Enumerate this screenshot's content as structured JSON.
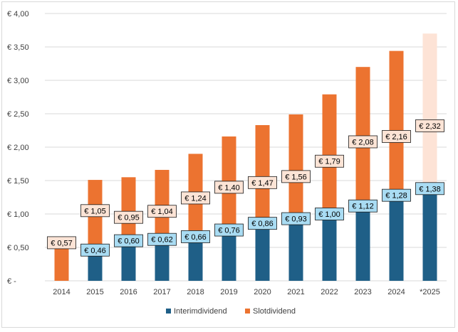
{
  "chart_data": {
    "type": "bar",
    "stacked": true,
    "categories": [
      "2014",
      "2015",
      "2016",
      "2017",
      "2018",
      "2019",
      "2020",
      "2021",
      "2022",
      "2023",
      "2024",
      "*2025"
    ],
    "series": [
      {
        "name": "Interimdividend",
        "color": "#1f5f87",
        "values": [
          0,
          0.46,
          0.6,
          0.62,
          0.66,
          0.76,
          0.86,
          0.93,
          1.0,
          1.12,
          1.28,
          1.38
        ],
        "labels": [
          null,
          "€ 0,46",
          "€ 0,60",
          "€ 0,62",
          "€ 0,66",
          "€ 0,76",
          "€ 0,86",
          "€ 0,93",
          "€ 1,00",
          "€ 1,12",
          "€ 1,28",
          "€ 1,38"
        ]
      },
      {
        "name": "Slotdividend",
        "color": "#ec7330",
        "values": [
          0.57,
          1.05,
          0.95,
          1.04,
          1.24,
          1.4,
          1.47,
          1.56,
          1.79,
          2.08,
          2.16,
          2.32
        ],
        "labels": [
          "€ 0,57",
          "€ 1,05",
          "€ 0,95",
          "€ 1,04",
          "€ 1,24",
          "€ 1,40",
          "€ 1,47",
          "€ 1,56",
          "€ 1,79",
          "€ 2,08",
          "€ 2,16",
          "€ 2,32"
        ]
      }
    ],
    "estimate_category": "*2025",
    "estimate_top_color": "#fde3d6",
    "ylim": [
      0,
      4
    ],
    "y_ticks": [
      0,
      0.5,
      1,
      1.5,
      2,
      2.5,
      3,
      3.5,
      4
    ],
    "y_tick_labels": [
      "€ -",
      "€ 0,50",
      "€ 1,00",
      "€ 1,50",
      "€ 2,00",
      "€ 2,50",
      "€ 3,00",
      "€ 3,50",
      "€ 4,00"
    ],
    "grid": true,
    "legend_position": "bottom",
    "title": "",
    "xlabel": "",
    "ylabel": "",
    "interim_label_fill": "#a9dcf3",
    "slot_label_fill": "#fce4d6",
    "grid_color": "#d9d9d9"
  }
}
